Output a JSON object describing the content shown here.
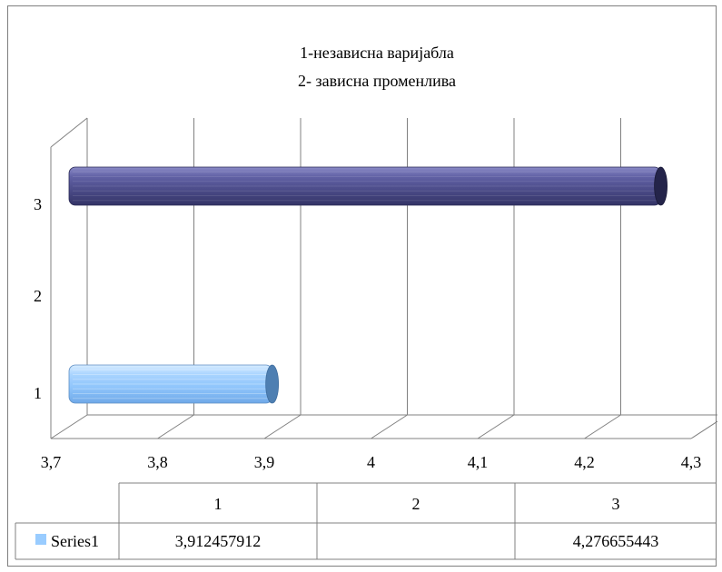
{
  "chart_data": {
    "type": "bar",
    "orientation": "horizontal",
    "style": "3d-cylinder",
    "title_lines": [
      "1-независна варијабла",
      "2- зависна променлива"
    ],
    "categories": [
      "1",
      "2",
      "3"
    ],
    "category_tick_labels": [
      "1",
      "2",
      "3"
    ],
    "x_tick_labels": [
      "3,7",
      "3,8",
      "3,9",
      "4",
      "4,1",
      "4,2",
      "4,3"
    ],
    "xlim": [
      3.7,
      4.3
    ],
    "x_step": 0.1,
    "grid": true,
    "series": [
      {
        "name": "Series1",
        "values": [
          3.912457912,
          null,
          4.276655443
        ],
        "value_labels": [
          "3,912457912",
          "",
          "4,276655443"
        ],
        "bar_colors": [
          "#99ccff",
          null,
          "#4f4f8c"
        ]
      }
    ],
    "legend_swatch_color": "#99ccff",
    "data_table": true
  }
}
